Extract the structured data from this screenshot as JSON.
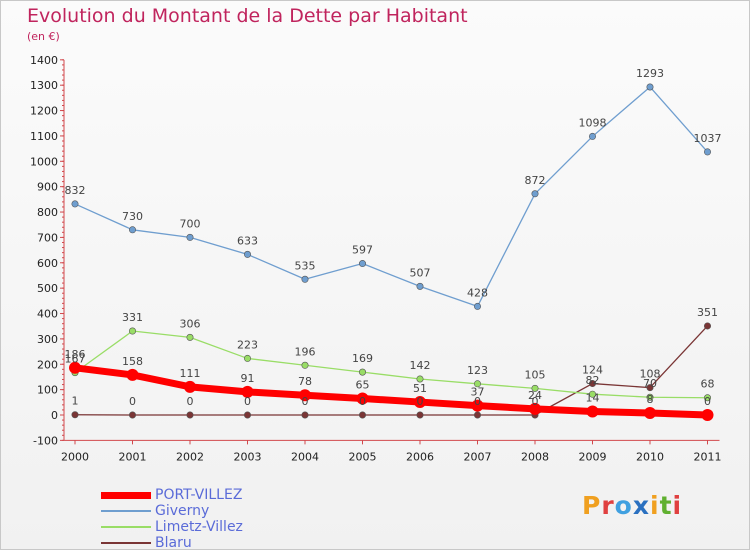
{
  "chart_data": {
    "type": "line",
    "title": "Evolution du Montant de la Dette par Habitant",
    "subtitle": "(en €)",
    "x": [
      "2000",
      "2001",
      "2002",
      "2003",
      "2004",
      "2005",
      "2006",
      "2007",
      "2008",
      "2009",
      "2010",
      "2011"
    ],
    "ylim": [
      -100,
      1400
    ],
    "yticks": [
      -100,
      0,
      100,
      200,
      300,
      400,
      500,
      600,
      700,
      800,
      900,
      1000,
      1100,
      1200,
      1300,
      1400
    ],
    "grid": false,
    "legend_position": "bottom-left",
    "series": [
      {
        "name": "PORT-VILLEZ",
        "color": "#ff0000",
        "values": [
          186,
          158,
          111,
          91,
          78,
          65,
          51,
          37,
          24,
          14,
          8,
          0
        ],
        "labels": [
          "186",
          "158",
          "111",
          "91",
          "78",
          "65",
          "51",
          "37",
          "24",
          "14",
          "8",
          "0"
        ]
      },
      {
        "name": "Giverny",
        "color": "#6f9ecf",
        "values": [
          832,
          730,
          700,
          633,
          535,
          597,
          507,
          428,
          872,
          1098,
          1293,
          1037
        ],
        "labels": [
          "832",
          "730",
          "700",
          "633",
          "535",
          "597",
          "507",
          "428",
          "872",
          "1098",
          "1293",
          "1037"
        ]
      },
      {
        "name": "Limetz-Villez",
        "color": "#99dd66",
        "values": [
          167,
          331,
          306,
          223,
          196,
          169,
          142,
          123,
          105,
          82,
          70,
          68
        ],
        "labels": [
          "167",
          "331",
          "306",
          "223",
          "196",
          "169",
          "142",
          "123",
          "105",
          "82",
          "70",
          "68"
        ]
      },
      {
        "name": "Blaru",
        "color": "#7a3535",
        "values": [
          1,
          0,
          0,
          0,
          0,
          0,
          0,
          0,
          0,
          124,
          108,
          351
        ],
        "labels": [
          "1",
          "0",
          "0",
          "0",
          "0",
          "0",
          "0",
          "0",
          "0",
          "124",
          "108",
          "351"
        ]
      }
    ]
  },
  "logo_text": "Proxiti",
  "logo_colors": [
    "#f0a020",
    "#e04040",
    "#40a0e0",
    "#2a70c0",
    "#f0a020",
    "#60b030",
    "#e04040"
  ]
}
